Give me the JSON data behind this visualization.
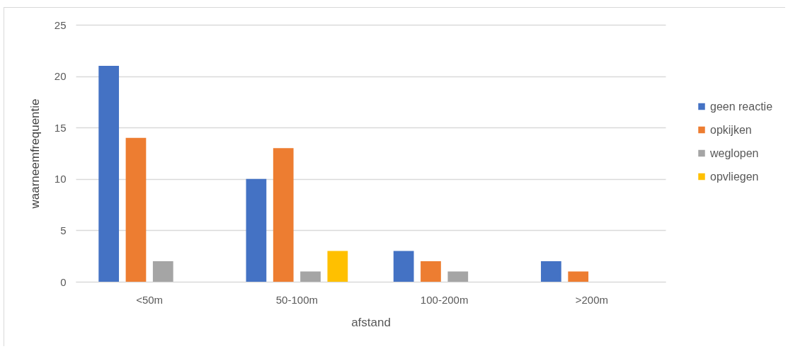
{
  "chart_data": {
    "type": "bar",
    "xlabel": "afstand",
    "ylabel": "waarneemfrequentie",
    "categories": [
      "<50m",
      "50-100m",
      "100-200m",
      ">200m"
    ],
    "series": [
      {
        "name": "geen reactie",
        "color": "#4472c4",
        "values": [
          21,
          10,
          3,
          2
        ]
      },
      {
        "name": "opkijken",
        "color": "#ed7d31",
        "values": [
          14,
          13,
          2,
          1
        ]
      },
      {
        "name": "weglopen",
        "color": "#a5a5a5",
        "values": [
          2,
          1,
          1,
          null
        ]
      },
      {
        "name": "opvliegen",
        "color": "#ffc000",
        "values": [
          null,
          3,
          null,
          null
        ]
      }
    ],
    "ylim": [
      0,
      25
    ],
    "yticks": [
      0,
      5,
      10,
      15,
      20,
      25
    ],
    "grid": "y",
    "legend": "right"
  }
}
